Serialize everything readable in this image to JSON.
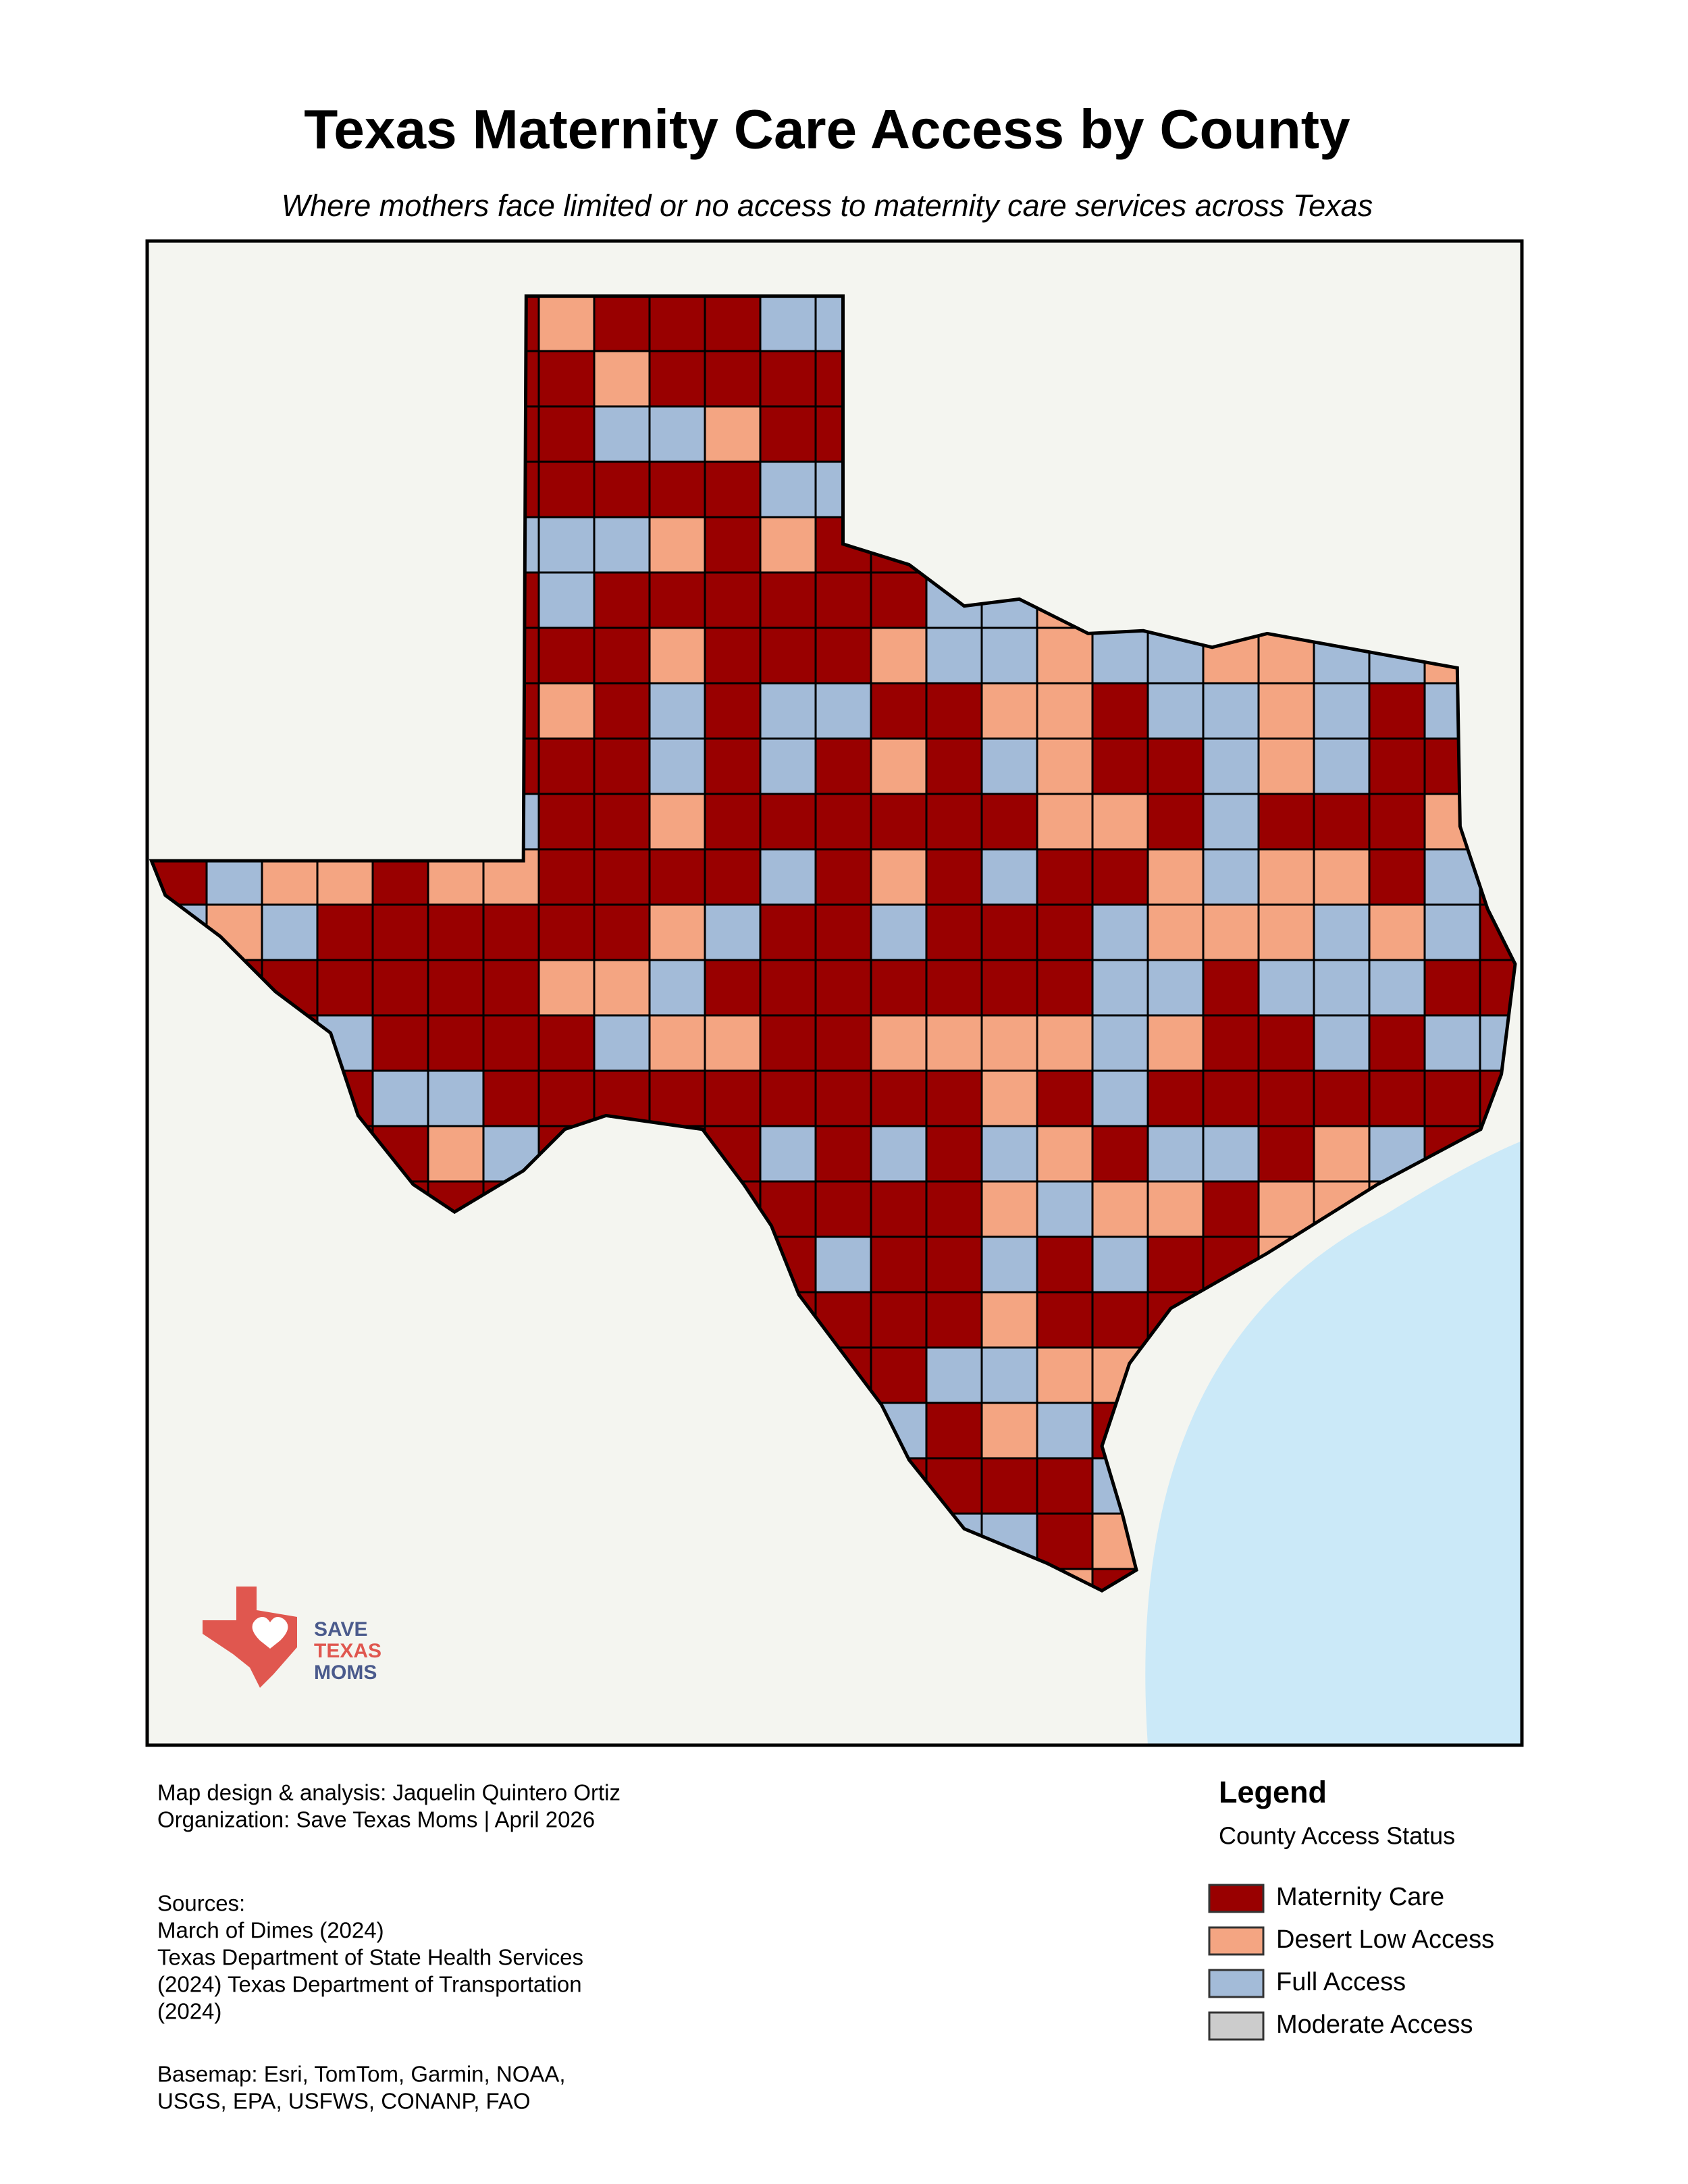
{
  "title": "Texas Maternity Care Access by County",
  "subtitle": "Where mothers face limited or no access to maternity care services across Texas",
  "logo": [
    "SAVE",
    "TEXAS",
    "MOMS"
  ],
  "credits": [
    "Map design & analysis: Jaquelin Quintero Ortiz",
    "Organization: Save Texas Moms | April 2026"
  ],
  "sources": [
    "Sources:",
    "March of Dimes (2024)",
    "Texas Department of State Health Services",
    "(2024) Texas Department of Transportation",
    "(2024)"
  ],
  "basemap": [
    "Basemap: Esri, TomTom, Garmin, NOAA,",
    "USGS, EPA, USFWS, CONANP, FAO"
  ],
  "legend": {
    "title": "Legend",
    "subtitle": "County Access Status",
    "items": [
      {
        "label": "Maternity Care",
        "color": "#990000"
      },
      {
        "label": "Desert Low Access",
        "color": "#f4a582"
      },
      {
        "label": "Full Access",
        "color": "#a3bbd8"
      },
      {
        "label": "Moderate Access",
        "color": "#cccccc"
      }
    ]
  }
}
